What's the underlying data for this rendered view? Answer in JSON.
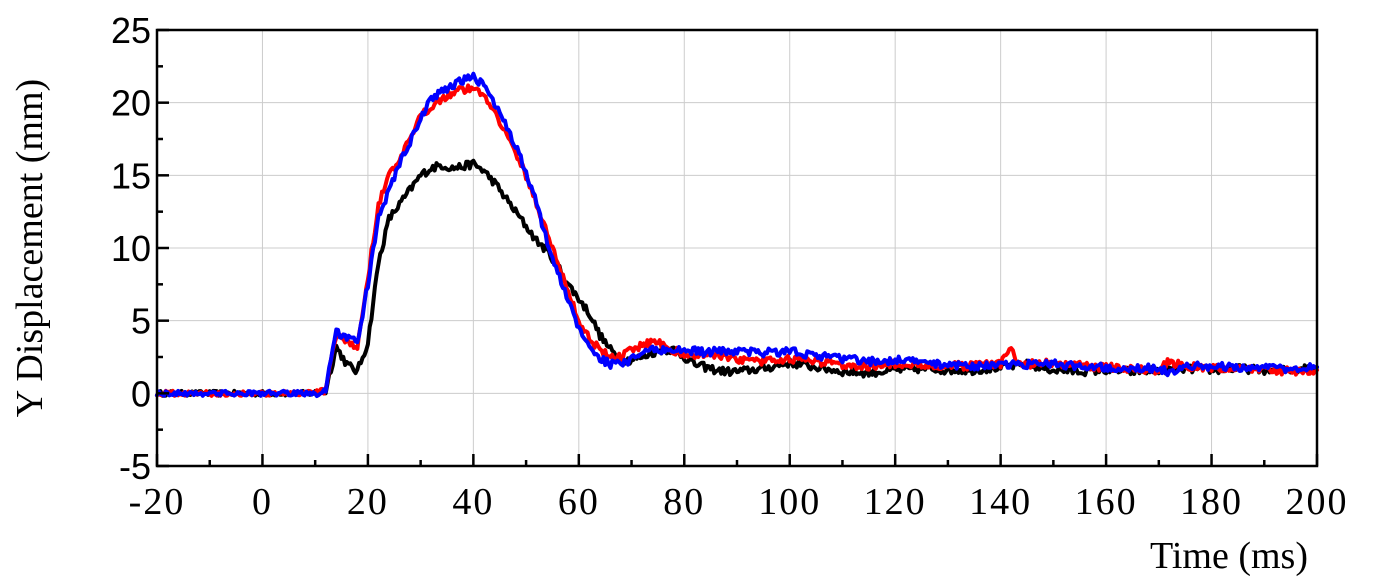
{
  "chart_data": {
    "type": "line",
    "title": "",
    "xlabel": "Time (ms)",
    "ylabel": "Y Displacement (mm)",
    "xlim": [
      -20,
      200
    ],
    "ylim": [
      -5,
      25
    ],
    "xticks": [
      -20,
      0,
      20,
      40,
      60,
      80,
      100,
      120,
      140,
      160,
      180,
      200
    ],
    "yticks": [
      -5,
      0,
      5,
      10,
      15,
      20,
      25
    ],
    "xtick_labels": [
      "-20",
      "0",
      "20",
      "40",
      "60",
      "80",
      "100",
      "120",
      "140",
      "160",
      "180",
      "200"
    ],
    "ytick_labels": [
      "-5",
      "0",
      "5",
      "10",
      "15",
      "20",
      "25"
    ],
    "grid": true,
    "legend": "none",
    "series": [
      {
        "color": "#000000",
        "x": [
          -20,
          -10,
          0,
          10,
          12,
          14,
          16,
          18,
          20,
          22,
          24,
          26,
          28,
          30,
          32,
          34,
          36,
          38,
          40,
          42,
          44,
          46,
          48,
          50,
          52,
          54,
          56,
          58,
          60,
          62,
          64,
          66,
          68,
          70,
          72,
          74,
          76,
          78,
          80,
          82,
          84,
          86,
          88,
          90,
          95,
          100,
          105,
          110,
          115,
          120,
          125,
          130,
          135,
          140,
          145,
          150,
          155,
          160,
          165,
          170,
          175,
          180,
          185,
          190,
          195,
          200
        ],
        "y": [
          0,
          0,
          0,
          0,
          0.2,
          3.2,
          2.0,
          1.5,
          3.5,
          9,
          12,
          13,
          14,
          15,
          15.5,
          15.7,
          15.5,
          15.6,
          15.8,
          15.3,
          14.5,
          13.5,
          12.5,
          11.5,
          10.5,
          9.8,
          8.8,
          7.5,
          6.5,
          5.5,
          4.0,
          3.0,
          2.3,
          2.3,
          2.5,
          2.8,
          3.0,
          3.0,
          2.5,
          2.0,
          1.8,
          1.6,
          1.5,
          1.5,
          1.7,
          2.1,
          1.8,
          1.5,
          1.4,
          1.6,
          1.7,
          1.6,
          1.6,
          1.8,
          2.0,
          1.6,
          1.5,
          1.6,
          1.5,
          1.6,
          1.7,
          1.6,
          1.7,
          1.6,
          1.6,
          1.8
        ]
      },
      {
        "color": "#ff0000",
        "x": [
          -20,
          -10,
          0,
          10,
          12,
          14,
          16,
          18,
          20,
          22,
          24,
          26,
          28,
          30,
          32,
          34,
          36,
          38,
          40,
          42,
          44,
          46,
          48,
          50,
          52,
          54,
          56,
          58,
          60,
          62,
          64,
          66,
          68,
          70,
          72,
          74,
          76,
          78,
          80,
          82,
          84,
          86,
          88,
          90,
          95,
          100,
          105,
          110,
          115,
          120,
          125,
          130,
          135,
          140,
          142,
          143,
          145,
          150,
          155,
          160,
          165,
          170,
          172,
          175,
          180,
          185,
          190,
          195,
          200
        ],
        "y": [
          0,
          0,
          0,
          0,
          0.2,
          4.0,
          3.5,
          3.2,
          8,
          13,
          15,
          16,
          17.5,
          19,
          19.8,
          20.3,
          20.7,
          20.9,
          21.0,
          20.5,
          19.5,
          18,
          16.5,
          15,
          13,
          11,
          9,
          7,
          5,
          3.8,
          3.0,
          2.5,
          2.5,
          3.0,
          3.3,
          3.6,
          3.4,
          3.0,
          2.6,
          2.6,
          2.8,
          2.7,
          2.4,
          2.3,
          2.2,
          2.4,
          2.2,
          2.0,
          1.9,
          2.0,
          2.0,
          1.9,
          1.9,
          2.0,
          3.3,
          2.2,
          2.0,
          2.1,
          1.9,
          1.8,
          1.7,
          1.6,
          2.2,
          1.8,
          1.8,
          1.6,
          1.7,
          1.5,
          1.6
        ]
      },
      {
        "color": "#0000ff",
        "x": [
          -20,
          -10,
          0,
          10,
          12,
          14,
          16,
          18,
          20,
          22,
          24,
          26,
          28,
          30,
          32,
          34,
          36,
          38,
          40,
          42,
          44,
          46,
          48,
          50,
          52,
          54,
          56,
          58,
          60,
          62,
          64,
          66,
          68,
          70,
          72,
          74,
          76,
          78,
          80,
          82,
          84,
          86,
          88,
          90,
          95,
          100,
          105,
          110,
          115,
          120,
          125,
          130,
          135,
          140,
          145,
          150,
          155,
          160,
          165,
          170,
          172,
          175,
          180,
          185,
          190,
          195,
          200
        ],
        "y": [
          0,
          0,
          0,
          0,
          0.2,
          4.2,
          3.9,
          3.4,
          7.5,
          12,
          14,
          15.8,
          17.2,
          19,
          20.2,
          20.8,
          21.2,
          21.5,
          21.8,
          21.2,
          20,
          18.5,
          17,
          15.3,
          13,
          10.5,
          8.3,
          6.3,
          4.5,
          3.3,
          2.4,
          2.0,
          2.0,
          2.3,
          2.8,
          3.0,
          3.0,
          3.0,
          3.0,
          2.9,
          2.8,
          2.9,
          2.9,
          2.9,
          2.8,
          2.9,
          2.6,
          2.4,
          2.2,
          2.3,
          2.1,
          2.0,
          1.9,
          1.9,
          2.0,
          2.0,
          1.9,
          1.8,
          1.8,
          1.7,
          1.4,
          1.8,
          1.9,
          1.8,
          1.8,
          1.7,
          1.8
        ]
      }
    ]
  }
}
